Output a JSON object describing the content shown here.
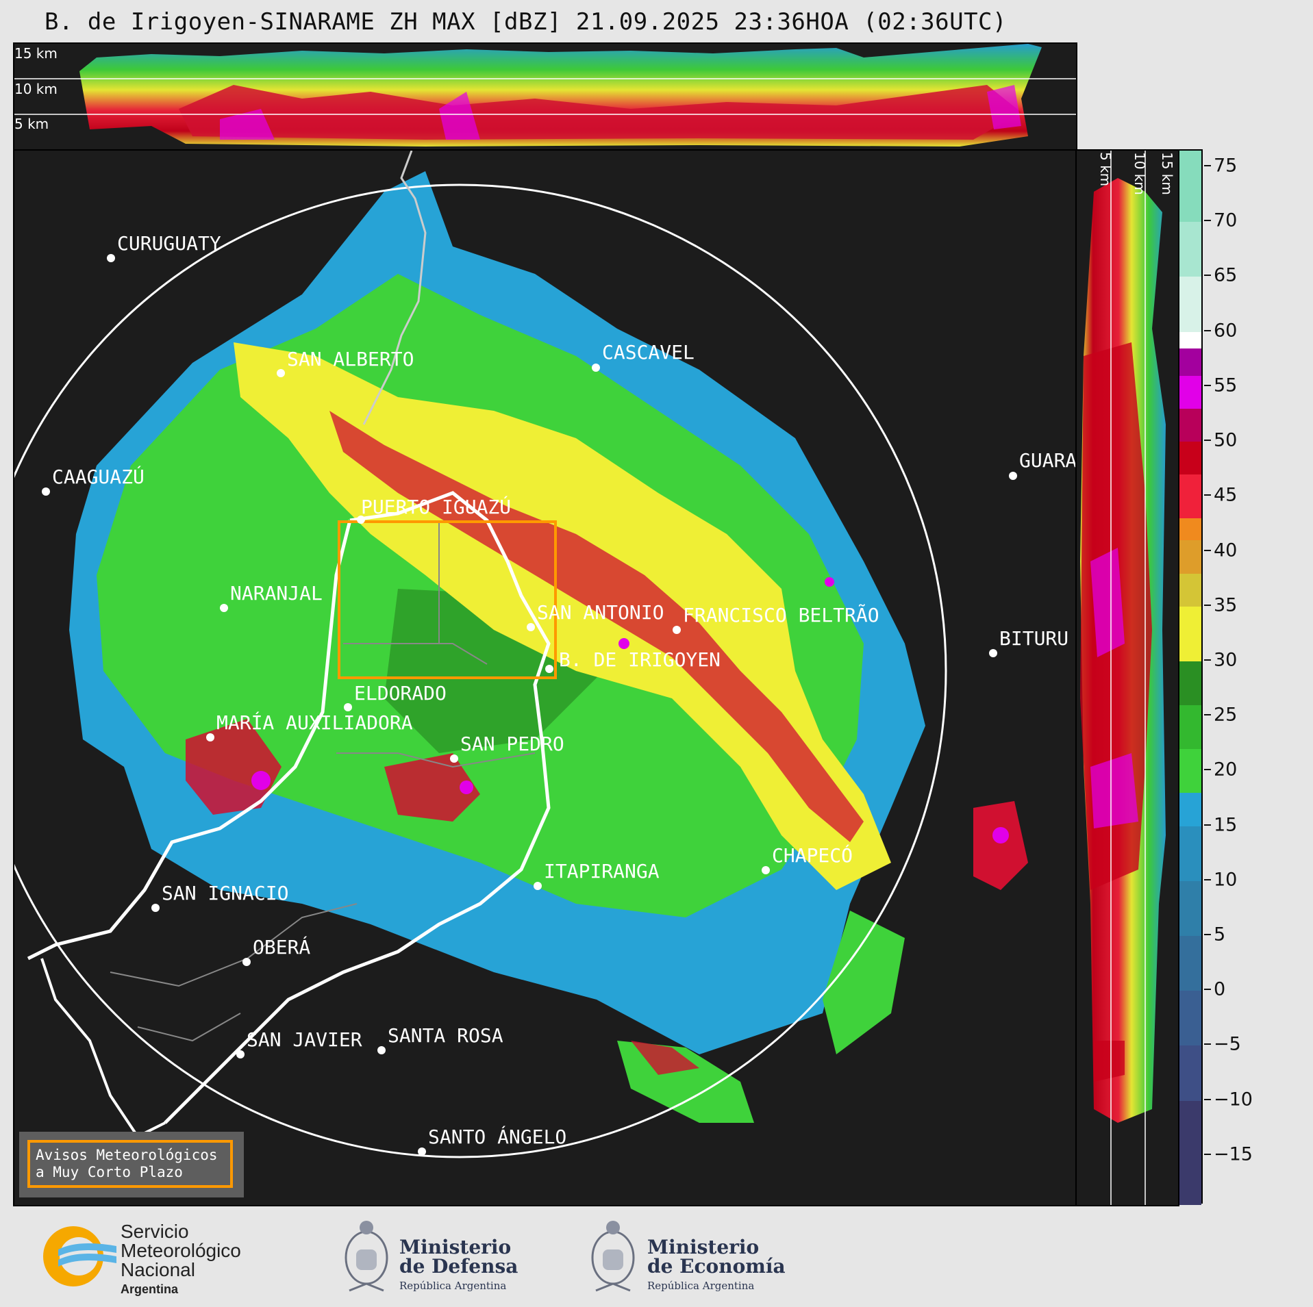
{
  "title": "B. de Irigoyen-SINARAME ZH MAX [dBZ] 21.09.2025 23:36HOA (02:36UTC)",
  "top_panel": {
    "altitudes": [
      "15 km",
      "10 km",
      "5 km"
    ]
  },
  "side_panel": {
    "altitudes": [
      "5 km",
      "10 km",
      "15 km"
    ]
  },
  "colorbar": {
    "unit": "dBZ",
    "ticks": [
      "75",
      "70",
      "65",
      "60",
      "55",
      "50",
      "45",
      "40",
      "35",
      "30",
      "25",
      "20",
      "15",
      "10",
      "5",
      "0",
      "−5",
      "−10",
      "−15"
    ],
    "range": [
      -19.5,
      76.5
    ],
    "stops": [
      {
        "from": -19.5,
        "color": "#3b3a6b"
      },
      {
        "from": -10,
        "color": "#3e4f86"
      },
      {
        "from": -5,
        "color": "#3a5f92"
      },
      {
        "from": 0,
        "color": "#346f9c"
      },
      {
        "from": 5,
        "color": "#2f7fa9"
      },
      {
        "from": 10,
        "color": "#2a8fbd"
      },
      {
        "from": 15,
        "color": "#27a3d6"
      },
      {
        "from": 18,
        "color": "#3fd23b"
      },
      {
        "from": 22,
        "color": "#33b82f"
      },
      {
        "from": 26,
        "color": "#2a8f23"
      },
      {
        "from": 30,
        "color": "#efef35"
      },
      {
        "from": 35,
        "color": "#d4c536"
      },
      {
        "from": 38,
        "color": "#de9d2a"
      },
      {
        "from": 41,
        "color": "#f08a1e"
      },
      {
        "from": 43,
        "color": "#f0213a"
      },
      {
        "from": 47,
        "color": "#c8001a"
      },
      {
        "from": 50,
        "color": "#b8005a"
      },
      {
        "from": 53,
        "color": "#e100e8"
      },
      {
        "from": 56,
        "color": "#a3009e"
      },
      {
        "from": 58.5,
        "color": "#ffffff"
      },
      {
        "from": 60,
        "color": "#d8f2e8"
      },
      {
        "from": 65,
        "color": "#a8e6d0"
      },
      {
        "from": 70,
        "color": "#86dcbc"
      }
    ]
  },
  "map": {
    "cities": [
      {
        "name": "CURUGUATY"
      },
      {
        "name": "SAN ALBERTO"
      },
      {
        "name": "CASCAVEL"
      },
      {
        "name": "CAAGUAZÚ"
      },
      {
        "name": "GUARA"
      },
      {
        "name": "PUERTO IGUAZÚ"
      },
      {
        "name": "NARANJAL"
      },
      {
        "name": "SAN ANTONIO"
      },
      {
        "name": "FRANCISCO BELTRÃO"
      },
      {
        "name": "BITURU"
      },
      {
        "name": "B. DE IRIGOYEN"
      },
      {
        "name": "ELDORADO"
      },
      {
        "name": "MARÍA AUXILIADORA"
      },
      {
        "name": "SAN PEDRO"
      },
      {
        "name": "CHAPECÓ"
      },
      {
        "name": "ITAPIRANGA"
      },
      {
        "name": "SAN IGNACIO"
      },
      {
        "name": "OBERÁ"
      },
      {
        "name": "SAN JAVIER"
      },
      {
        "name": "SANTA ROSA"
      },
      {
        "name": "SANTO ÁNGELO"
      }
    ]
  },
  "legend": {
    "line1": "Avisos Meteorológicos",
    "line2": "a Muy Corto Plazo"
  },
  "footer": {
    "smn": {
      "line1": "Servicio",
      "line2": "Meteorológico",
      "line3": "Nacional",
      "line4": "Argentina"
    },
    "defensa": {
      "line1": "Ministerio",
      "line2": "de Defensa",
      "line3": "República Argentina"
    },
    "economia": {
      "line1": "Ministerio",
      "line2": "de Economía",
      "line3": "República Argentina"
    }
  }
}
